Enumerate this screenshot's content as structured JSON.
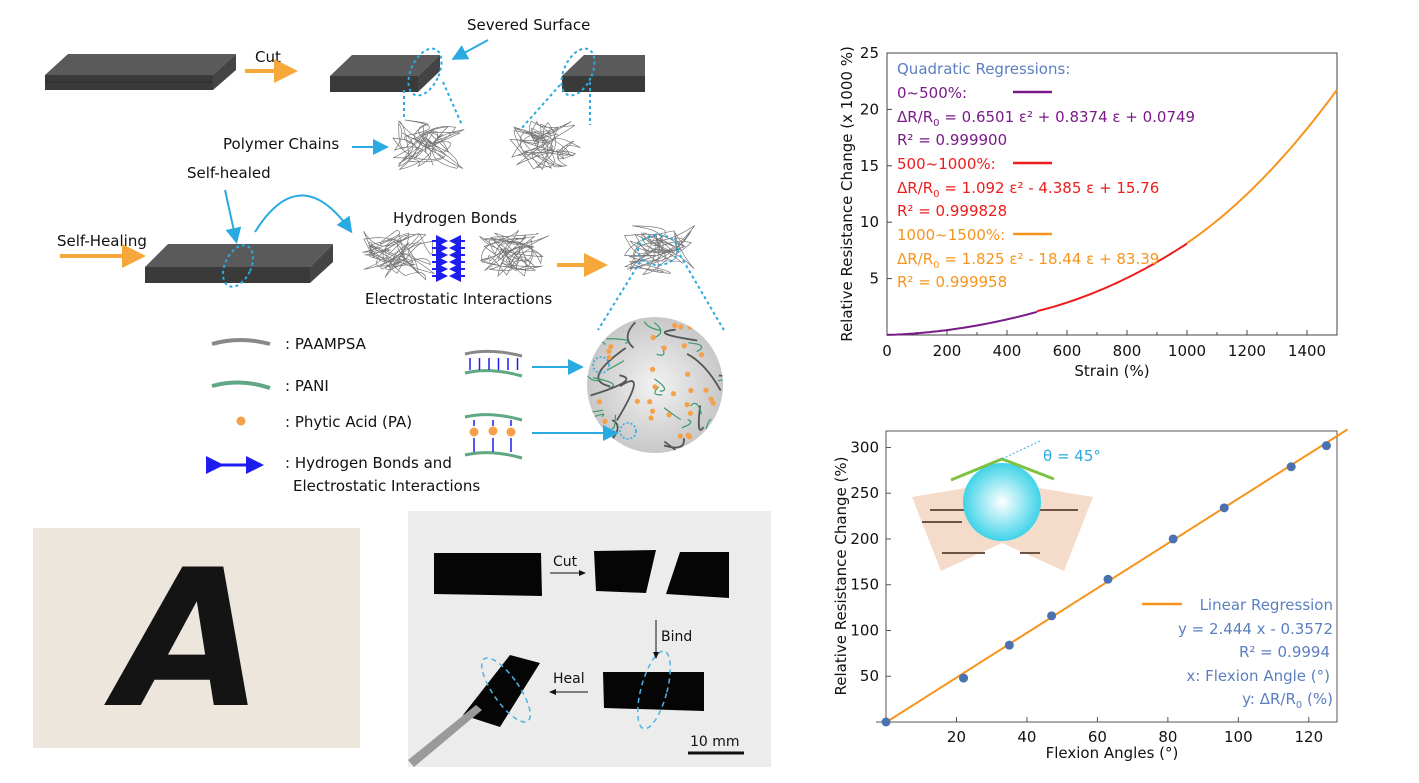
{
  "schematic": {
    "cut": "Cut",
    "severed_surface": "Severed Surface",
    "polymer_chains": "Polymer Chains",
    "self_healing": "Self-Healing",
    "self_healed": "Self-healed",
    "hydrogen_bonds": "Hydrogen Bonds",
    "electrostatic_interactions": "Electrostatic Interactions",
    "legend": {
      "paampsa": ": PAAMPSA",
      "pani": ": PANI",
      "phytic_acid": ": Phytic Acid (PA)",
      "bonds_line1": ": Hydrogen Bonds and",
      "bonds_line2": "Electrostatic Interactions"
    }
  },
  "photos": {
    "letter_print": "A",
    "cut": "Cut",
    "bind": "Bind",
    "heal": "Heal",
    "scale_bar": "10 mm"
  },
  "colors": {
    "purple": "#7b1a8a",
    "red": "#ee1c1c",
    "orange": "#f7941d",
    "blue_text": "#5b7fbf",
    "cyan": "#29abe2",
    "point": "#4a72b0"
  },
  "chart_data": [
    {
      "type": "line",
      "xlabel": "Strain (%)",
      "ylabel": "Relative Resistance Change (x 1000 %)",
      "xlim": [
        0,
        1500
      ],
      "ylim": [
        0,
        25
      ],
      "xticks": [
        "0",
        "200",
        "400",
        "600",
        "800",
        "1000",
        "1200",
        "1400"
      ],
      "yticks": [
        "5",
        "10",
        "15",
        "20",
        "25"
      ],
      "legend_title": "Quadratic Regressions:",
      "series": [
        {
          "name": "0~500%:",
          "range": [
            0,
            500
          ],
          "coeffs": [
            0.6501,
            0.8374,
            0.0749
          ],
          "eq_lhs": "ΔR/R",
          "eq_sub": "0",
          "eq_rhs": " = 0.6501 ε² + 0.8374 ε + 0.0749",
          "r2": "R² = 0.999900",
          "color": "#7b1a8a"
        },
        {
          "name": "500~1000%:",
          "range": [
            500,
            1000
          ],
          "coeffs": [
            1.092,
            -4.385,
            15.76
          ],
          "eq_lhs": "ΔR/R",
          "eq_sub": "0",
          "eq_rhs": " = 1.092 ε² - 4.385 ε + 15.76",
          "r2": "R² = 0.999828",
          "color": "#ee1c1c"
        },
        {
          "name": "1000~1500%:",
          "range": [
            1000,
            1500
          ],
          "coeffs": [
            1.825,
            -18.44,
            83.39
          ],
          "eq_lhs": "ΔR/R",
          "eq_sub": "0",
          "eq_rhs": " = 1.825 ε² - 18.44 ε + 83.39",
          "r2": "R² = 0.999958",
          "color": "#f7941d"
        }
      ]
    },
    {
      "type": "scatter",
      "xlabel": "Flexion Angles (°)",
      "ylabel": "Relative Resistance Change (%)",
      "xlim": [
        0,
        128
      ],
      "ylim": [
        0,
        318
      ],
      "xticks": [
        "20",
        "40",
        "60",
        "80",
        "100",
        "120"
      ],
      "yticks": [
        "50",
        "100",
        "150",
        "200",
        "250",
        "300"
      ],
      "points": [
        [
          0,
          0
        ],
        [
          22,
          48
        ],
        [
          35,
          84
        ],
        [
          47,
          116
        ],
        [
          63,
          156
        ],
        [
          81.5,
          200
        ],
        [
          96,
          234
        ],
        [
          115,
          279
        ],
        [
          125,
          302
        ]
      ],
      "fit": {
        "slope": 2.444,
        "intercept": -0.3572
      },
      "inset_label": "θ = 45°",
      "legend": {
        "name": "Linear Regression",
        "equation": "y = 2.444 x - 0.3572",
        "r2": "R² = 0.9994",
        "x_def": "x: Flexion Angle (°)",
        "y_def_lhs": "y: ΔR/R",
        "y_def_sub": "0",
        "y_def_rhs": " (%)"
      }
    }
  ]
}
